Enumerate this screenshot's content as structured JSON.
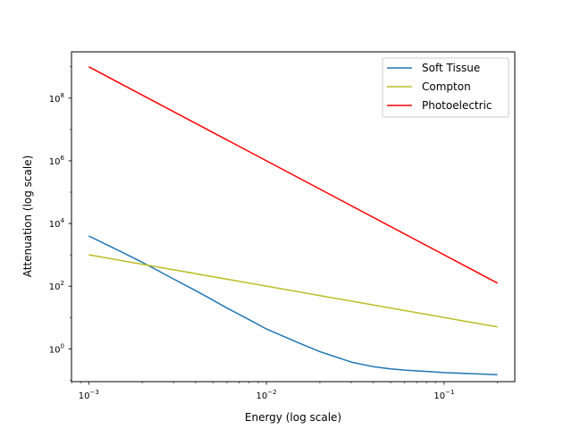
{
  "chart_data": {
    "type": "line",
    "xscale": "log",
    "yscale": "log",
    "xlabel": "Energy (log scale)",
    "ylabel": "Attenuation (log scale)",
    "xlim": [
      0.0008,
      0.25
    ],
    "ylim": [
      0.09,
      3000000000
    ],
    "xticks": [
      {
        "value": 0.001,
        "base": "10",
        "exp": "−3"
      },
      {
        "value": 0.01,
        "base": "10",
        "exp": "−2"
      },
      {
        "value": 0.1,
        "base": "10",
        "exp": "−1"
      }
    ],
    "yticks": [
      {
        "value": 1,
        "base": "10",
        "exp": "0"
      },
      {
        "value": 100,
        "base": "10",
        "exp": "2"
      },
      {
        "value": 10000,
        "base": "10",
        "exp": "4"
      },
      {
        "value": 1000000,
        "base": "10",
        "exp": "6"
      },
      {
        "value": 100000000,
        "base": "10",
        "exp": "8"
      }
    ],
    "grid": false,
    "legend_position": "top-right",
    "series": [
      {
        "name": "Soft Tissue",
        "color": "#1f77b4",
        "x": [
          0.001,
          0.0015,
          0.002,
          0.003,
          0.004,
          0.005,
          0.006,
          0.008,
          0.01,
          0.015,
          0.02,
          0.03,
          0.04,
          0.05,
          0.06,
          0.08,
          0.1,
          0.15,
          0.2
        ],
        "y": [
          4000,
          1300,
          580,
          170,
          72,
          36,
          20,
          8.5,
          4.3,
          1.6,
          0.82,
          0.38,
          0.27,
          0.23,
          0.21,
          0.19,
          0.175,
          0.16,
          0.15
        ]
      },
      {
        "name": "Compton",
        "color": "#bcbd22",
        "x": [
          0.001,
          0.2
        ],
        "y": [
          1000,
          5
        ]
      },
      {
        "name": "Photoelectric",
        "color": "#ff0000",
        "x": [
          0.001,
          0.2
        ],
        "y": [
          1000000000,
          125
        ]
      }
    ]
  }
}
